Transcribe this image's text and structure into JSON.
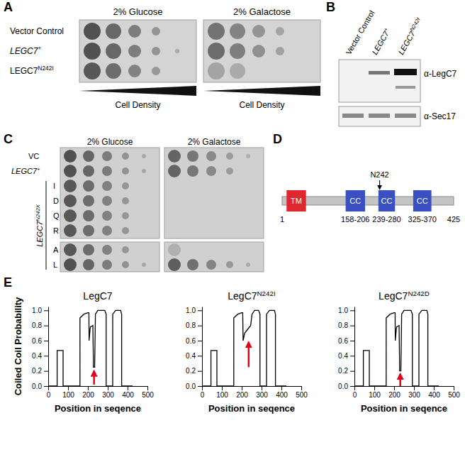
{
  "panels": {
    "A": {
      "label": "A",
      "columns": [
        "2% Glucose",
        "2% Galactose"
      ],
      "rows": [
        {
          "text": "Vector Control"
        },
        {
          "text": "LEGC7",
          "sup": "+"
        },
        {
          "text": "LEGC7",
          "sup": "N242I"
        }
      ],
      "density_label": "Cell Density"
    },
    "B": {
      "label": "B",
      "lanes": [
        {
          "text": "Vector Control"
        },
        {
          "text": "LEGC7",
          "sup": "+"
        },
        {
          "text": "LEGC7",
          "sup": "N242I"
        }
      ],
      "blots": [
        "α-LegC7",
        "α-Sec17"
      ]
    },
    "C": {
      "label": "C",
      "columns": [
        "2% Glucose",
        "2% Galactose"
      ],
      "rows": [
        {
          "text": "VC"
        },
        {
          "text": "LEGC7",
          "sup": "+"
        },
        {
          "text": "I"
        },
        {
          "text": "D"
        },
        {
          "text": "Q"
        },
        {
          "text": "R"
        },
        {
          "text": "A"
        },
        {
          "text": "L"
        }
      ],
      "group_label": {
        "text": "LEGC7",
        "sup": "N242X"
      }
    },
    "D": {
      "label": "D",
      "ends": [
        1,
        425
      ],
      "domains": [
        {
          "text": "TM",
          "start": 12,
          "end": 60
        },
        {
          "text": "CC",
          "start": 158,
          "end": 206,
          "range_label": "158-206"
        },
        {
          "text": "CC",
          "start": 239,
          "end": 280,
          "range_label": "239-280"
        },
        {
          "text": "CC",
          "start": 325,
          "end": 370,
          "range_label": "325-370"
        }
      ],
      "site": {
        "text": "N242",
        "position": 242
      }
    },
    "E": {
      "label": "E"
    }
  },
  "chart_data": [
    {
      "type": "line",
      "title": {
        "text": "LegC7"
      },
      "y_label": "Coiled Coil Probability",
      "x_label": "Position in seqence",
      "xlim": [
        0,
        500
      ],
      "ylim": [
        0,
        1.05
      ],
      "xticks": [
        0,
        100,
        200,
        300,
        400,
        500
      ],
      "yticks": [
        {
          "value": 0,
          "label": "0.0"
        },
        0.2,
        0.4,
        0.6,
        0.8,
        {
          "value": 1,
          "label": "1.0"
        }
      ],
      "x": [
        0,
        45,
        45,
        75,
        75,
        160,
        160,
        180,
        200,
        205,
        206,
        212,
        225,
        228,
        234,
        238,
        250,
        285,
        292,
        292,
        325,
        325,
        340,
        365,
        370,
        370,
        425
      ],
      "series": [
        {
          "color": "#000000",
          "values": [
            0,
            0,
            0.47,
            0.47,
            0,
            0,
            0.9,
            0.95,
            0.97,
            0.97,
            0.6,
            0.78,
            0.8,
            0.25,
            0.25,
            0.95,
            1.0,
            1.0,
            0.95,
            0,
            0,
            0.95,
            1.0,
            1.0,
            0.95,
            0,
            0
          ]
        }
      ],
      "arrow": {
        "x": 231,
        "y_from": 0.02,
        "y_to": 0.2,
        "color": "#e3001b"
      }
    },
    {
      "type": "line",
      "title": {
        "text": "LegC7",
        "sup": "N242I"
      },
      "x_label": "Position in seqence",
      "xlim": [
        0,
        500
      ],
      "ylim": [
        0,
        1.05
      ],
      "xticks": [
        0,
        100,
        200,
        300,
        400,
        500
      ],
      "yticks": [
        {
          "value": 0,
          "label": "0.0"
        },
        0.2,
        0.4,
        0.6,
        0.8,
        {
          "value": 1,
          "label": "1.0"
        }
      ],
      "x": [
        0,
        45,
        45,
        75,
        75,
        160,
        160,
        180,
        200,
        205,
        207,
        215,
        230,
        245,
        252,
        265,
        285,
        292,
        292,
        325,
        325,
        340,
        365,
        370,
        370,
        425
      ],
      "series": [
        {
          "color": "#000000",
          "values": [
            0,
            0,
            0.47,
            0.47,
            0,
            0,
            0.9,
            0.95,
            0.97,
            0.97,
            0.6,
            0.7,
            0.75,
            0.8,
            0.95,
            1.0,
            1.0,
            0.95,
            0,
            0,
            0.95,
            1.0,
            1.0,
            0.95,
            0,
            0
          ]
        }
      ],
      "arrow": {
        "x": 235,
        "y_from": 0.25,
        "y_to": 0.58,
        "color": "#e3001b"
      }
    },
    {
      "type": "line",
      "title": {
        "text": "LegC7",
        "sup": "N242D"
      },
      "x_label": "Position in seqence",
      "xlim": [
        0,
        500
      ],
      "ylim": [
        0,
        1.05
      ],
      "xticks": [
        0,
        100,
        200,
        300,
        400,
        500
      ],
      "yticks": [
        {
          "value": 0,
          "label": "0.0"
        },
        0.2,
        0.4,
        0.6,
        0.8,
        {
          "value": 1,
          "label": "1.0"
        }
      ],
      "x": [
        0,
        45,
        45,
        75,
        75,
        160,
        160,
        180,
        200,
        205,
        206,
        212,
        225,
        228,
        234,
        238,
        250,
        285,
        292,
        292,
        325,
        325,
        340,
        365,
        370,
        370,
        425
      ],
      "series": [
        {
          "color": "#000000",
          "values": [
            0,
            0,
            0.47,
            0.47,
            0,
            0,
            0.9,
            0.95,
            0.97,
            0.97,
            0.6,
            0.78,
            0.8,
            0.2,
            0.2,
            0.95,
            1.0,
            1.0,
            0.95,
            0,
            0,
            0.95,
            1.0,
            1.0,
            0.95,
            0,
            0
          ]
        }
      ],
      "arrow": {
        "x": 231,
        "y_from": 0.0,
        "y_to": 0.16,
        "color": "#e3001b"
      }
    }
  ]
}
